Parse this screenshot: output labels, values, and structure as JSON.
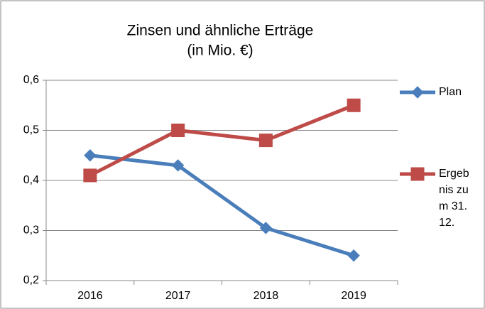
{
  "chart_data": {
    "type": "line",
    "title": [
      "Zinsen und ähnliche Erträge",
      "(in Mio. €)"
    ],
    "categories": [
      "2016",
      "2017",
      "2018",
      "2019"
    ],
    "series": [
      {
        "name": "Plan",
        "color": "#4a7ebb",
        "marker": "diamond",
        "values": [
          0.45,
          0.43,
          0.305,
          0.25
        ]
      },
      {
        "name": "Ergebnis zum 31.12.",
        "color": "#be4b48",
        "marker": "square",
        "values": [
          0.41,
          0.5,
          0.48,
          0.55
        ]
      }
    ],
    "ylim": [
      0.2,
      0.6
    ],
    "yticks": [
      {
        "value": 0.2,
        "label": "0,2"
      },
      {
        "value": 0.3,
        "label": "0,3"
      },
      {
        "value": 0.4,
        "label": "0,4"
      },
      {
        "value": 0.5,
        "label": "0,5"
      },
      {
        "value": 0.6,
        "label": "0,6"
      }
    ],
    "grid": true,
    "legend": "right"
  }
}
